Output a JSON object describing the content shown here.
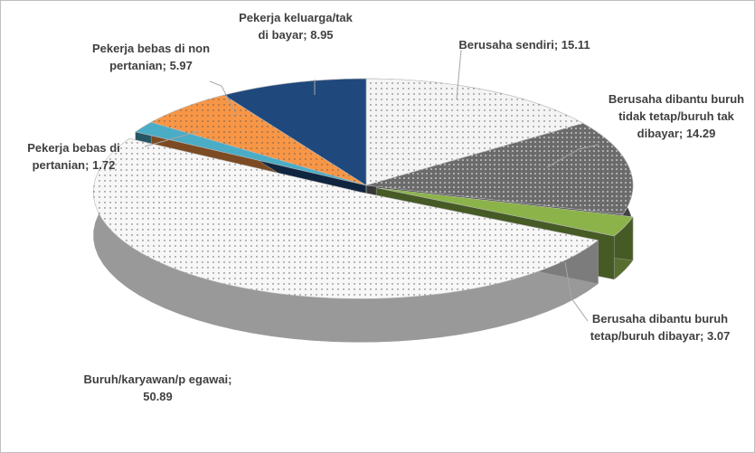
{
  "chart_data": {
    "type": "pie",
    "values": [
      15.11,
      14.29,
      3.07,
      50.89,
      1.72,
      5.97,
      8.95
    ],
    "value_labels": [
      "Berusaha sendiri; 15.11",
      "Berusaha dibantu buruh tidak tetap/buruh tak dibayar; 14.29",
      "Berusaha dibantu buruh tetap/buruh dibayar; 3.07",
      "Buruh/karyawan/p egawai; 50.89",
      "Pekerja bebas di pertanian; 1.72",
      "Pekerja bebas di non pertanian; 5.97",
      "Pekerja keluarga/tak di bayar; 8.95"
    ],
    "colors": [
      "#f4f4f4",
      "#6b6b6b",
      "#8cb34a",
      "#f7f7f7",
      "#4bacc6",
      "#f79646",
      "#1f497d"
    ]
  }
}
